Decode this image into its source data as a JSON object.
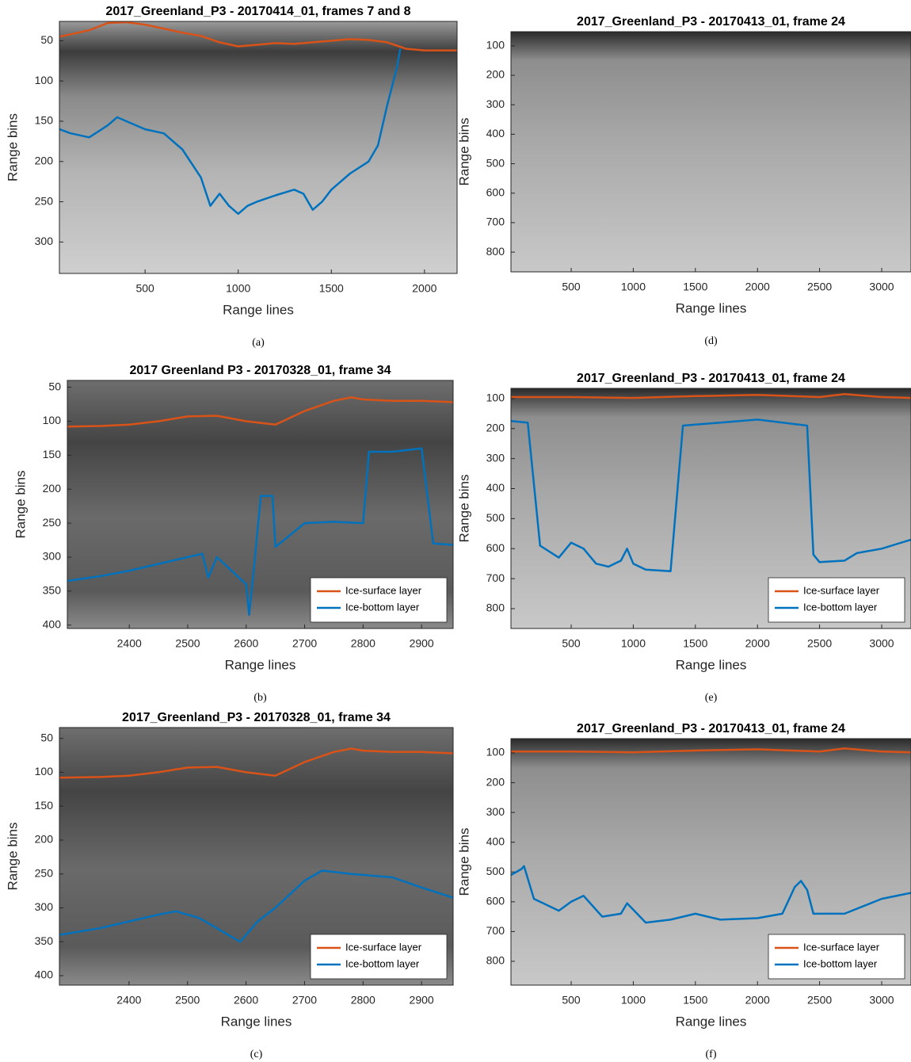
{
  "chart_data": [
    {
      "type": "line",
      "title": "2017_Greenland_P3 - 20170414_01, frames 7 and 8",
      "x_label": "Range lines",
      "y_label": "Range bins",
      "caption": "(a)",
      "xlim": [
        40,
        2175
      ],
      "ylim": [
        339,
        26
      ],
      "xticks": [
        500,
        1000,
        1500,
        2000
      ],
      "yticks": [
        50,
        100,
        150,
        200,
        250,
        300
      ],
      "series": [
        {
          "color": "#d95319",
          "x": [
            40,
            100,
            200,
            300,
            400,
            500,
            600,
            700,
            800,
            900,
            1000,
            1100,
            1200,
            1300,
            1400,
            1500,
            1600,
            1700,
            1800,
            1900,
            2000,
            2100,
            2175
          ],
          "values": [
            45,
            42,
            37,
            28,
            27,
            30,
            35,
            40,
            44,
            52,
            57,
            55,
            53,
            54,
            52,
            50,
            48,
            49,
            52,
            60,
            62,
            62,
            62
          ]
        },
        {
          "color": "#0072bd",
          "x": [
            40,
            100,
            200,
            300,
            350,
            400,
            500,
            600,
            700,
            800,
            850,
            900,
            950,
            1000,
            1050,
            1100,
            1200,
            1300,
            1350,
            1400,
            1450,
            1500,
            1600,
            1700,
            1750,
            1800,
            1850,
            1870
          ],
          "values": [
            160,
            165,
            170,
            155,
            145,
            150,
            160,
            165,
            185,
            220,
            255,
            240,
            255,
            265,
            255,
            250,
            242,
            235,
            240,
            260,
            250,
            235,
            215,
            200,
            180,
            130,
            85,
            60
          ]
        }
      ]
    },
    {
      "type": "line",
      "title": "2017 Greenland P3 - 20170328_01, frame 34",
      "x_label": "Range lines",
      "y_label": "Range bins",
      "caption": "(b)",
      "xlim": [
        2294,
        2954
      ],
      "ylim": [
        405,
        40
      ],
      "xticks": [
        2400,
        2500,
        2600,
        2700,
        2800,
        2900
      ],
      "yticks": [
        50,
        100,
        150,
        200,
        250,
        300,
        350,
        400
      ],
      "legend": "lower right",
      "series": [
        {
          "name": "Ice-surface layer",
          "color": "#d95319",
          "x": [
            2294,
            2350,
            2400,
            2450,
            2500,
            2550,
            2600,
            2650,
            2700,
            2750,
            2780,
            2800,
            2850,
            2900,
            2954
          ],
          "values": [
            108,
            107,
            105,
            100,
            93,
            92,
            100,
            105,
            85,
            70,
            65,
            68,
            70,
            70,
            72
          ]
        },
        {
          "name": "Ice-bottom layer",
          "color": "#0072bd",
          "x": [
            2294,
            2350,
            2400,
            2450,
            2500,
            2525,
            2535,
            2550,
            2600,
            2605,
            2615,
            2625,
            2645,
            2650,
            2700,
            2750,
            2800,
            2810,
            2850,
            2900,
            2920,
            2954
          ],
          "values": [
            335,
            328,
            320,
            310,
            300,
            295,
            330,
            300,
            340,
            385,
            300,
            210,
            210,
            285,
            250,
            248,
            250,
            145,
            145,
            140,
            280,
            282
          ]
        }
      ]
    },
    {
      "type": "line",
      "title": "2017_Greenland_P3 - 20170328_01, frame 34",
      "x_label": "Range lines",
      "y_label": "Range bins",
      "caption": "(c)",
      "xlim": [
        2281,
        2954
      ],
      "ylim": [
        414,
        34
      ],
      "xticks": [
        2400,
        2500,
        2600,
        2700,
        2800,
        2900
      ],
      "yticks": [
        50,
        100,
        150,
        200,
        250,
        300,
        350,
        400
      ],
      "legend": "lower right",
      "series": [
        {
          "name": "Ice-surface layer",
          "color": "#d95319",
          "x": [
            2281,
            2350,
            2400,
            2450,
            2500,
            2550,
            2600,
            2650,
            2700,
            2750,
            2780,
            2800,
            2850,
            2900,
            2954
          ],
          "values": [
            108,
            107,
            105,
            100,
            93,
            92,
            100,
            105,
            85,
            70,
            65,
            68,
            70,
            70,
            72
          ]
        },
        {
          "name": "Ice-bottom layer",
          "color": "#0072bd",
          "x": [
            2281,
            2350,
            2400,
            2450,
            2480,
            2520,
            2560,
            2590,
            2620,
            2650,
            2700,
            2730,
            2780,
            2850,
            2900,
            2954
          ],
          "values": [
            340,
            330,
            320,
            310,
            305,
            315,
            335,
            350,
            320,
            300,
            260,
            245,
            250,
            255,
            270,
            285
          ]
        }
      ]
    },
    {
      "type": "line",
      "title": "2017_Greenland_P3 - 20170413_01, frame 24",
      "x_label": "Range lines",
      "y_label": "Range bins",
      "caption": "(d)",
      "xlim": [
        15,
        3236
      ],
      "ylim": [
        867,
        52
      ],
      "xticks": [
        500,
        1000,
        1500,
        2000,
        2500,
        3000
      ],
      "yticks": [
        100,
        200,
        300,
        400,
        500,
        600,
        700,
        800
      ],
      "series": []
    },
    {
      "type": "line",
      "title": "2017_Greenland_P3 - 20170413_01, frame 24",
      "x_label": "Range lines",
      "y_label": "Range bins",
      "caption": "(e)",
      "xlim": [
        15,
        3236
      ],
      "ylim": [
        866,
        66
      ],
      "xticks": [
        500,
        1000,
        1500,
        2000,
        2500,
        3000
      ],
      "yticks": [
        100,
        200,
        300,
        400,
        500,
        600,
        700,
        800
      ],
      "legend": "lower right",
      "series": [
        {
          "name": "Ice-surface layer",
          "color": "#d95319",
          "x": [
            15,
            500,
            1000,
            1500,
            2000,
            2500,
            2700,
            3000,
            3236
          ],
          "values": [
            95,
            95,
            98,
            92,
            88,
            95,
            85,
            95,
            98
          ]
        },
        {
          "name": "Ice-bottom layer",
          "color": "#0072bd",
          "x": [
            15,
            150,
            250,
            400,
            500,
            600,
            700,
            800,
            900,
            950,
            1000,
            1100,
            1300,
            1400,
            1700,
            2000,
            2300,
            2400,
            2450,
            2500,
            2700,
            2800,
            3000,
            3236
          ],
          "values": [
            175,
            180,
            590,
            630,
            580,
            600,
            650,
            660,
            640,
            600,
            650,
            670,
            675,
            190,
            180,
            170,
            185,
            190,
            620,
            645,
            640,
            615,
            600,
            570
          ]
        }
      ]
    },
    {
      "type": "line",
      "title": "2017_Greenland_P3 - 20170413_01, frame 24",
      "x_label": "Range lines",
      "y_label": "Range bins",
      "caption": "(f)",
      "xlim": [
        15,
        3236
      ],
      "ylim": [
        880,
        52
      ],
      "xticks": [
        500,
        1000,
        1500,
        2000,
        2500,
        3000
      ],
      "yticks": [
        100,
        200,
        300,
        400,
        500,
        600,
        700,
        800
      ],
      "legend": "lower right",
      "series": [
        {
          "name": "Ice-surface layer",
          "color": "#d95319",
          "x": [
            15,
            500,
            1000,
            1500,
            2000,
            2500,
            2700,
            3000,
            3236
          ],
          "values": [
            95,
            95,
            98,
            92,
            88,
            95,
            85,
            95,
            98
          ]
        },
        {
          "name": "Ice-bottom layer",
          "color": "#0072bd",
          "x": [
            15,
            100,
            120,
            200,
            400,
            500,
            600,
            750,
            900,
            950,
            1100,
            1300,
            1500,
            1700,
            2000,
            2200,
            2300,
            2350,
            2400,
            2450,
            2700,
            3000,
            3236
          ],
          "values": [
            510,
            490,
            480,
            590,
            630,
            600,
            580,
            650,
            640,
            605,
            670,
            660,
            640,
            660,
            655,
            640,
            550,
            530,
            560,
            640,
            640,
            590,
            570
          ]
        }
      ]
    }
  ]
}
